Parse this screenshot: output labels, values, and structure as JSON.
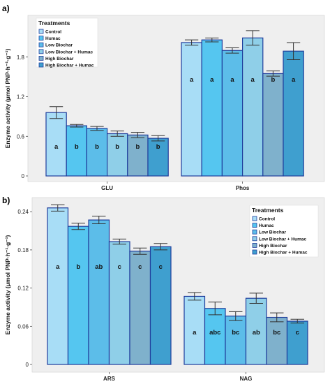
{
  "ylabel": "Enzyme activity (μmol PNP·h⁻¹·g⁻¹)",
  "legend_title": "Treatments",
  "treatments": [
    "Control",
    "Humac",
    "Low Biochar",
    "Low Biochar + Humac",
    "High Biochar",
    "High Biochar + Humac"
  ],
  "colors": {
    "Control": "#a8ddf6",
    "Humac": "#55c6f0",
    "Low Biochar": "#5cbde9",
    "Low Biochar + Humac": "#8fcfe8",
    "High Biochar": "#7fb1cc",
    "High Biochar + Humac": "#3f9fcf",
    "bar_edge": "#1f3d9c",
    "panel_bg": "#efefef"
  },
  "chart_data": [
    {
      "type": "bar",
      "panel_label": "a)",
      "categories": [
        "GLU",
        "Phos"
      ],
      "ylim": [
        0,
        2.4
      ],
      "yticks": [
        0,
        0.6,
        1.2,
        1.8
      ],
      "ytick_labels": [
        "0",
        "0.6",
        "1.2",
        "1.8"
      ],
      "legend_position": "top-left",
      "series": [
        {
          "name": "Control",
          "values": [
            0.96,
            2.02
          ],
          "errors": [
            0.09,
            0.04
          ],
          "letters": [
            "a",
            "a"
          ]
        },
        {
          "name": "Humac",
          "values": [
            0.76,
            2.06
          ],
          "errors": [
            0.02,
            0.03
          ],
          "letters": [
            "b",
            "a"
          ]
        },
        {
          "name": "Low Biochar",
          "values": [
            0.72,
            1.9
          ],
          "errors": [
            0.03,
            0.04
          ],
          "letters": [
            "b",
            "a"
          ]
        },
        {
          "name": "Low Biochar + Humac",
          "values": [
            0.64,
            2.09
          ],
          "errors": [
            0.04,
            0.11
          ],
          "letters": [
            "b",
            "a"
          ]
        },
        {
          "name": "High Biochar",
          "values": [
            0.62,
            1.55
          ],
          "errors": [
            0.04,
            0.04
          ],
          "letters": [
            "b",
            "b"
          ]
        },
        {
          "name": "High Biochar + Humac",
          "values": [
            0.57,
            1.89
          ],
          "errors": [
            0.04,
            0.13
          ],
          "letters": [
            "b",
            "a"
          ]
        }
      ]
    },
    {
      "type": "bar",
      "panel_label": "b)",
      "categories": [
        "ARS",
        "NAG"
      ],
      "ylim": [
        0,
        0.26
      ],
      "yticks": [
        0,
        0.06,
        0.12,
        0.18,
        0.24
      ],
      "ytick_labels": [
        "0",
        "0.06",
        "0.12",
        "0.18",
        "0.24"
      ],
      "legend_position": "top-right",
      "series": [
        {
          "name": "Control",
          "values": [
            0.246,
            0.107
          ],
          "errors": [
            0.005,
            0.006
          ],
          "letters": [
            "a",
            "a"
          ]
        },
        {
          "name": "Humac",
          "values": [
            0.217,
            0.088
          ],
          "errors": [
            0.005,
            0.01
          ],
          "letters": [
            "b",
            "abc"
          ]
        },
        {
          "name": "Low Biochar",
          "values": [
            0.227,
            0.076
          ],
          "errors": [
            0.006,
            0.007
          ],
          "letters": [
            "ab",
            "bc"
          ]
        },
        {
          "name": "Low Biochar + Humac",
          "values": [
            0.193,
            0.104
          ],
          "errors": [
            0.004,
            0.008
          ],
          "letters": [
            "c",
            "ab"
          ]
        },
        {
          "name": "High Biochar",
          "values": [
            0.178,
            0.074
          ],
          "errors": [
            0.005,
            0.007
          ],
          "letters": [
            "c",
            "bc"
          ]
        },
        {
          "name": "High Biochar + Humac",
          "values": [
            0.185,
            0.068
          ],
          "errors": [
            0.005,
            0.003
          ],
          "letters": [
            "c",
            "c"
          ]
        }
      ]
    }
  ]
}
